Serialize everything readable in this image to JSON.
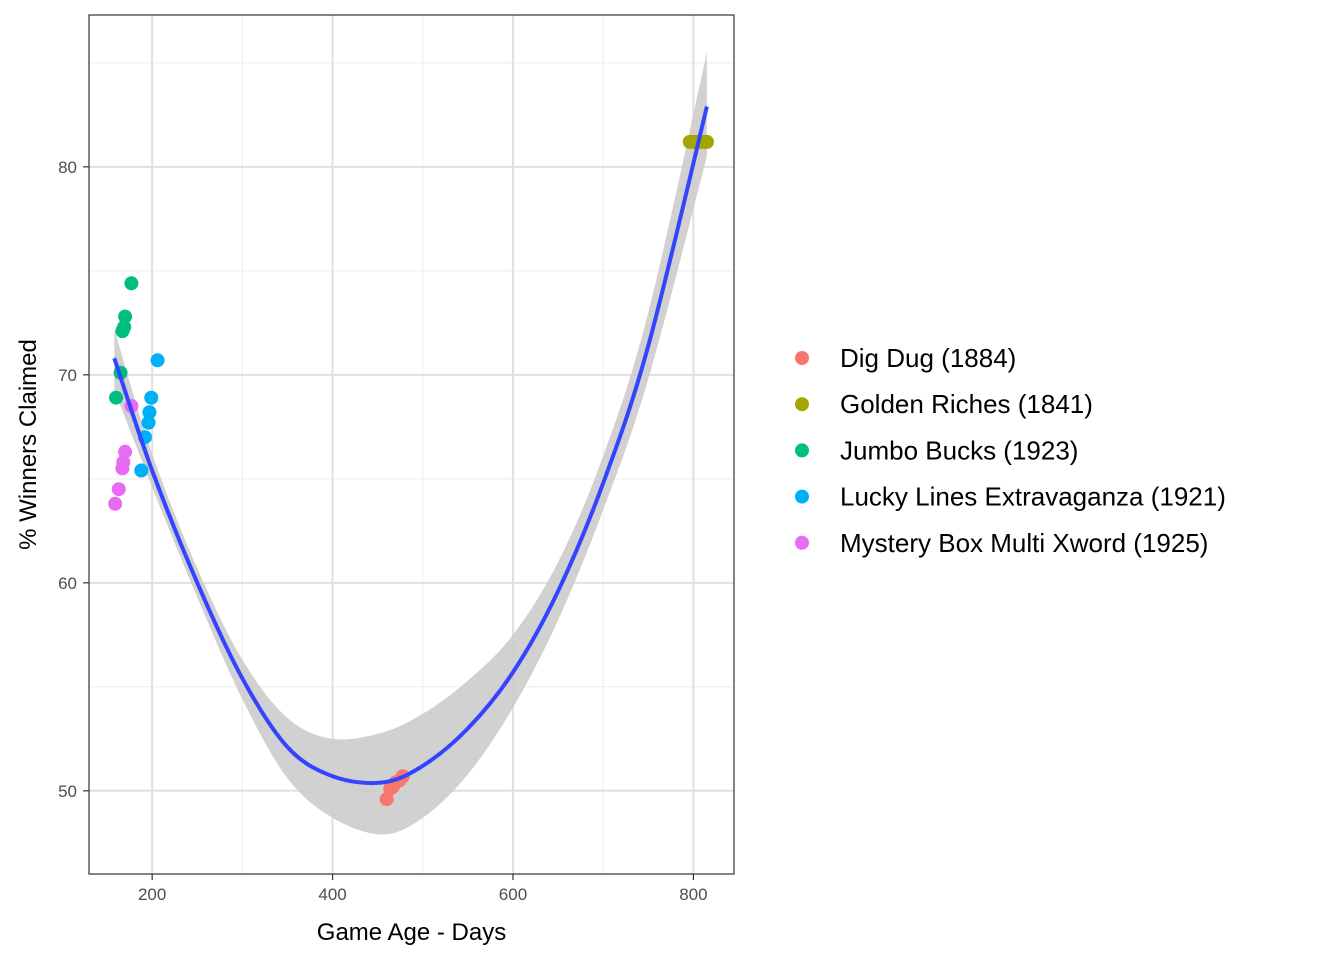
{
  "chart_data": {
    "type": "scatter",
    "xlabel": "Game Age - Days",
    "ylabel": "% Winners Claimed",
    "xlim": [
      130,
      845
    ],
    "ylim": [
      46,
      87.3
    ],
    "x_ticks": [
      200,
      400,
      600,
      800
    ],
    "y_ticks": [
      50,
      60,
      70,
      80
    ],
    "grid": true,
    "legend_position": "right",
    "series": [
      {
        "name": "Dig Dug (1884)",
        "color": "#F8766D",
        "points": [
          [
            460,
            49.6
          ],
          [
            464,
            50.1
          ],
          [
            467,
            50.2
          ],
          [
            470,
            50.4
          ],
          [
            474,
            50.5
          ],
          [
            478,
            50.7
          ]
        ]
      },
      {
        "name": "Golden Riches (1841)",
        "color": "#A3A500",
        "points": [
          [
            796,
            81.2
          ],
          [
            800,
            81.2
          ],
          [
            804,
            81.2
          ],
          [
            808,
            81.2
          ],
          [
            812,
            81.2
          ],
          [
            815,
            81.2
          ]
        ]
      },
      {
        "name": "Jumbo Bucks (1923)",
        "color": "#00BF7D",
        "points": [
          [
            160,
            68.9
          ],
          [
            165,
            70.1
          ],
          [
            167,
            72.1
          ],
          [
            168,
            72.2
          ],
          [
            169,
            72.3
          ],
          [
            170,
            72.8
          ],
          [
            177,
            74.4
          ]
        ]
      },
      {
        "name": "Lucky Lines Extravaganza (1921)",
        "color": "#00B0F6",
        "points": [
          [
            188,
            65.4
          ],
          [
            192,
            67.0
          ],
          [
            196,
            67.7
          ],
          [
            197,
            68.2
          ],
          [
            199,
            68.9
          ],
          [
            206,
            70.7
          ]
        ]
      },
      {
        "name": "Mystery Box Multi Xword (1925)",
        "color": "#E76BF3",
        "points": [
          [
            159,
            63.8
          ],
          [
            163,
            64.5
          ],
          [
            167,
            65.5
          ],
          [
            168,
            65.8
          ],
          [
            170,
            66.3
          ],
          [
            177,
            68.5
          ]
        ]
      }
    ],
    "smooth": {
      "color": "#3344FF",
      "band_color": "#CCCCCC",
      "x": [
        158,
        200,
        250,
        300,
        350,
        400,
        455,
        500,
        550,
        600,
        650,
        700,
        750,
        815
      ],
      "y": [
        70.8,
        65.4,
        60.0,
        55.4,
        52.1,
        50.7,
        50.4,
        51.2,
        53.0,
        55.7,
        59.6,
        64.8,
        71.4,
        82.9
      ],
      "lower": [
        69.3,
        64.6,
        59.3,
        54.4,
        50.6,
        48.7,
        47.9,
        48.7,
        50.8,
        54.0,
        58.2,
        63.5,
        69.8,
        80.5
      ],
      "upper": [
        72.2,
        66.2,
        60.7,
        56.3,
        53.5,
        52.5,
        52.8,
        53.7,
        55.3,
        57.5,
        61.0,
        66.1,
        73.0,
        85.5
      ]
    }
  }
}
